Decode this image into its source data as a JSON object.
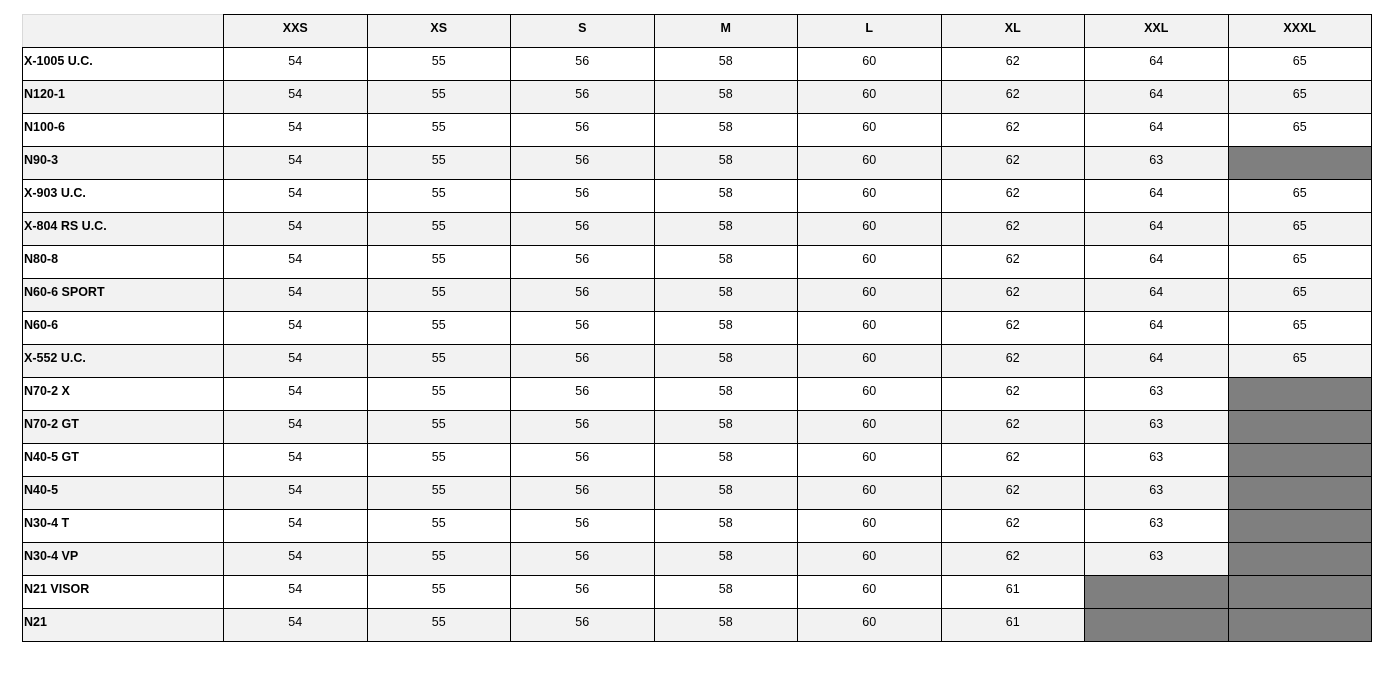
{
  "table": {
    "headers": [
      "",
      "XXS",
      "XS",
      "S",
      "M",
      "L",
      "XL",
      "XXL",
      "XXXL"
    ],
    "unavailable_color": "#7f7f7f",
    "rows": [
      {
        "model": "X-1005 U.C.",
        "values": [
          "54",
          "55",
          "56",
          "58",
          "60",
          "62",
          "64",
          "65"
        ]
      },
      {
        "model": "N120-1",
        "values": [
          "54",
          "55",
          "56",
          "58",
          "60",
          "62",
          "64",
          "65"
        ]
      },
      {
        "model": "N100-6",
        "values": [
          "54",
          "55",
          "56",
          "58",
          "60",
          "62",
          "64",
          "65"
        ]
      },
      {
        "model": "N90-3",
        "values": [
          "54",
          "55",
          "56",
          "58",
          "60",
          "62",
          "63",
          null
        ]
      },
      {
        "model": "X-903 U.C.",
        "values": [
          "54",
          "55",
          "56",
          "58",
          "60",
          "62",
          "64",
          "65"
        ]
      },
      {
        "model": "X-804 RS U.C.",
        "values": [
          "54",
          "55",
          "56",
          "58",
          "60",
          "62",
          "64",
          "65"
        ]
      },
      {
        "model": "N80-8",
        "values": [
          "54",
          "55",
          "56",
          "58",
          "60",
          "62",
          "64",
          "65"
        ]
      },
      {
        "model": "N60-6 SPORT",
        "values": [
          "54",
          "55",
          "56",
          "58",
          "60",
          "62",
          "64",
          "65"
        ]
      },
      {
        "model": "N60-6",
        "values": [
          "54",
          "55",
          "56",
          "58",
          "60",
          "62",
          "64",
          "65"
        ]
      },
      {
        "model": "X-552 U.C.",
        "values": [
          "54",
          "55",
          "56",
          "58",
          "60",
          "62",
          "64",
          "65"
        ]
      },
      {
        "model": "N70-2 X",
        "values": [
          "54",
          "55",
          "56",
          "58",
          "60",
          "62",
          "63",
          null
        ]
      },
      {
        "model": "N70-2 GT",
        "values": [
          "54",
          "55",
          "56",
          "58",
          "60",
          "62",
          "63",
          null
        ]
      },
      {
        "model": "N40-5 GT",
        "values": [
          "54",
          "55",
          "56",
          "58",
          "60",
          "62",
          "63",
          null
        ]
      },
      {
        "model": "N40-5",
        "values": [
          "54",
          "55",
          "56",
          "58",
          "60",
          "62",
          "63",
          null
        ]
      },
      {
        "model": "N30-4 T",
        "values": [
          "54",
          "55",
          "56",
          "58",
          "60",
          "62",
          "63",
          null
        ]
      },
      {
        "model": "N30-4 VP",
        "values": [
          "54",
          "55",
          "56",
          "58",
          "60",
          "62",
          "63",
          null
        ]
      },
      {
        "model": "N21 VISOR",
        "values": [
          "54",
          "55",
          "56",
          "58",
          "60",
          "61",
          null,
          null
        ]
      },
      {
        "model": "N21",
        "values": [
          "54",
          "55",
          "56",
          "58",
          "60",
          "61",
          null,
          null
        ]
      }
    ]
  }
}
